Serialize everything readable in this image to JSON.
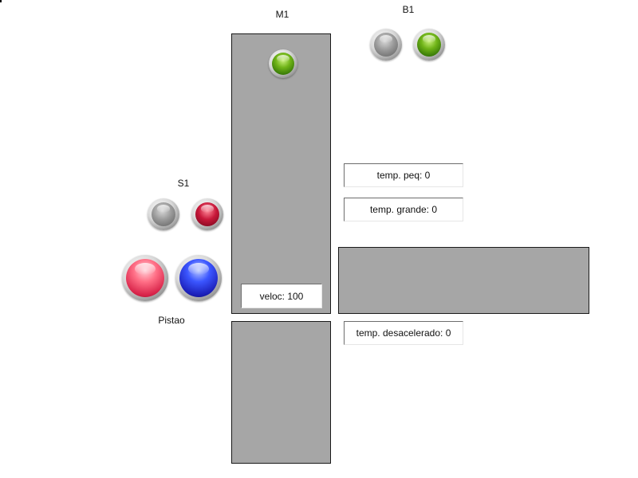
{
  "labels": {
    "m1": "M1",
    "b1": "B1",
    "s1": "S1",
    "pistao": "Pistao"
  },
  "fields": {
    "veloc": "veloc: 100",
    "temp_peq": "temp. peq: 0",
    "temp_grande": "temp. grande: 0",
    "temp_desacelerado": "temp. desacelerado: 0"
  },
  "indicators": {
    "m1_lamp": "green",
    "b1_lamps": [
      "gray",
      "green"
    ],
    "s1_lamps": [
      "gray",
      "red"
    ],
    "pistao_buttons": [
      "pink",
      "blue"
    ]
  },
  "colors": {
    "panel": "#a6a6a6",
    "background": "#ffffff"
  }
}
